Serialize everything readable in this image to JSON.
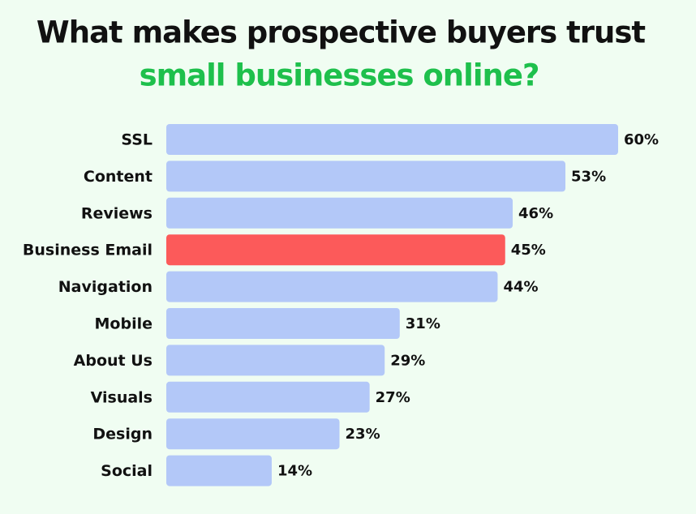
{
  "chart_data": {
    "type": "hbar",
    "title": "What makes prospective buyers trust",
    "subtitle": "small businesses online?",
    "title_color": "#111111",
    "subtitle_color": "#1ec04c",
    "categories": [
      "SSL",
      "Content",
      "Reviews",
      "Business Email",
      "Navigation",
      "Mobile",
      "About Us",
      "Visuals",
      "Design",
      "Social"
    ],
    "values": [
      60,
      53,
      46,
      45,
      44,
      31,
      29,
      27,
      23,
      14
    ],
    "value_labels": [
      "60%",
      "53%",
      "46%",
      "45%",
      "44%",
      "31%",
      "29%",
      "27%",
      "23%",
      "14%"
    ],
    "colors": [
      "#b3c8f8",
      "#b3c8f8",
      "#b3c8f8",
      "#fc5a5a",
      "#b3c8f8",
      "#b3c8f8",
      "#b3c8f8",
      "#b3c8f8",
      "#b3c8f8",
      "#b3c8f8"
    ]
  }
}
